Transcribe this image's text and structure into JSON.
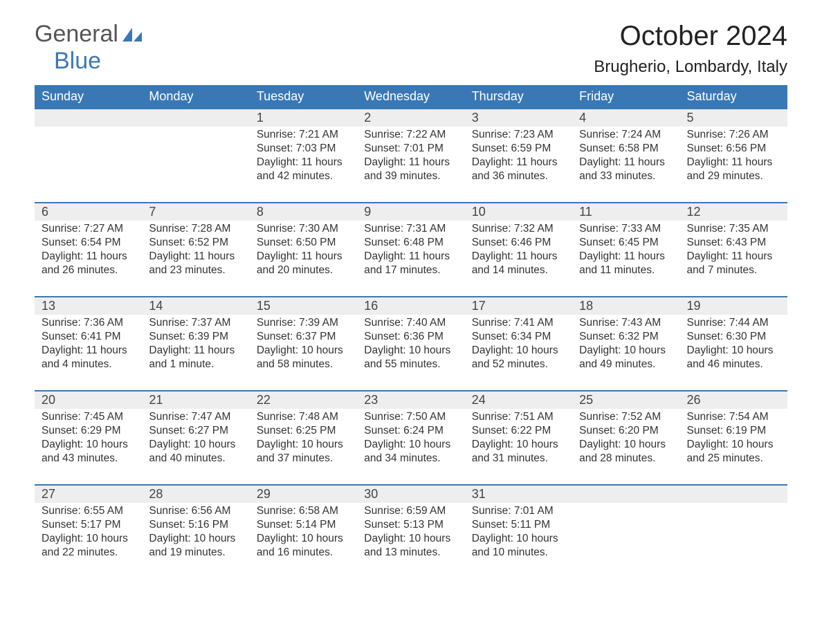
{
  "logo": {
    "general": "General",
    "blue": "Blue"
  },
  "title": "October 2024",
  "location": "Brugherio, Lombardy, Italy",
  "colors": {
    "header_bg": "#3a78b5",
    "header_text": "#ffffff",
    "daynum_bg": "#eeeeee",
    "border_top": "#3a78b5",
    "text": "#333333",
    "logo_gray": "#555555",
    "logo_blue": "#3a78b5",
    "background": "#ffffff"
  },
  "weekdays": [
    "Sunday",
    "Monday",
    "Tuesday",
    "Wednesday",
    "Thursday",
    "Friday",
    "Saturday"
  ],
  "weeks": [
    [
      null,
      null,
      {
        "n": "1",
        "sr": "7:21 AM",
        "ss": "7:03 PM",
        "dl": "11 hours and 42 minutes."
      },
      {
        "n": "2",
        "sr": "7:22 AM",
        "ss": "7:01 PM",
        "dl": "11 hours and 39 minutes."
      },
      {
        "n": "3",
        "sr": "7:23 AM",
        "ss": "6:59 PM",
        "dl": "11 hours and 36 minutes."
      },
      {
        "n": "4",
        "sr": "7:24 AM",
        "ss": "6:58 PM",
        "dl": "11 hours and 33 minutes."
      },
      {
        "n": "5",
        "sr": "7:26 AM",
        "ss": "6:56 PM",
        "dl": "11 hours and 29 minutes."
      }
    ],
    [
      {
        "n": "6",
        "sr": "7:27 AM",
        "ss": "6:54 PM",
        "dl": "11 hours and 26 minutes."
      },
      {
        "n": "7",
        "sr": "7:28 AM",
        "ss": "6:52 PM",
        "dl": "11 hours and 23 minutes."
      },
      {
        "n": "8",
        "sr": "7:30 AM",
        "ss": "6:50 PM",
        "dl": "11 hours and 20 minutes."
      },
      {
        "n": "9",
        "sr": "7:31 AM",
        "ss": "6:48 PM",
        "dl": "11 hours and 17 minutes."
      },
      {
        "n": "10",
        "sr": "7:32 AM",
        "ss": "6:46 PM",
        "dl": "11 hours and 14 minutes."
      },
      {
        "n": "11",
        "sr": "7:33 AM",
        "ss": "6:45 PM",
        "dl": "11 hours and 11 minutes."
      },
      {
        "n": "12",
        "sr": "7:35 AM",
        "ss": "6:43 PM",
        "dl": "11 hours and 7 minutes."
      }
    ],
    [
      {
        "n": "13",
        "sr": "7:36 AM",
        "ss": "6:41 PM",
        "dl": "11 hours and 4 minutes."
      },
      {
        "n": "14",
        "sr": "7:37 AM",
        "ss": "6:39 PM",
        "dl": "11 hours and 1 minute."
      },
      {
        "n": "15",
        "sr": "7:39 AM",
        "ss": "6:37 PM",
        "dl": "10 hours and 58 minutes."
      },
      {
        "n": "16",
        "sr": "7:40 AM",
        "ss": "6:36 PM",
        "dl": "10 hours and 55 minutes."
      },
      {
        "n": "17",
        "sr": "7:41 AM",
        "ss": "6:34 PM",
        "dl": "10 hours and 52 minutes."
      },
      {
        "n": "18",
        "sr": "7:43 AM",
        "ss": "6:32 PM",
        "dl": "10 hours and 49 minutes."
      },
      {
        "n": "19",
        "sr": "7:44 AM",
        "ss": "6:30 PM",
        "dl": "10 hours and 46 minutes."
      }
    ],
    [
      {
        "n": "20",
        "sr": "7:45 AM",
        "ss": "6:29 PM",
        "dl": "10 hours and 43 minutes."
      },
      {
        "n": "21",
        "sr": "7:47 AM",
        "ss": "6:27 PM",
        "dl": "10 hours and 40 minutes."
      },
      {
        "n": "22",
        "sr": "7:48 AM",
        "ss": "6:25 PM",
        "dl": "10 hours and 37 minutes."
      },
      {
        "n": "23",
        "sr": "7:50 AM",
        "ss": "6:24 PM",
        "dl": "10 hours and 34 minutes."
      },
      {
        "n": "24",
        "sr": "7:51 AM",
        "ss": "6:22 PM",
        "dl": "10 hours and 31 minutes."
      },
      {
        "n": "25",
        "sr": "7:52 AM",
        "ss": "6:20 PM",
        "dl": "10 hours and 28 minutes."
      },
      {
        "n": "26",
        "sr": "7:54 AM",
        "ss": "6:19 PM",
        "dl": "10 hours and 25 minutes."
      }
    ],
    [
      {
        "n": "27",
        "sr": "6:55 AM",
        "ss": "5:17 PM",
        "dl": "10 hours and 22 minutes."
      },
      {
        "n": "28",
        "sr": "6:56 AM",
        "ss": "5:16 PM",
        "dl": "10 hours and 19 minutes."
      },
      {
        "n": "29",
        "sr": "6:58 AM",
        "ss": "5:14 PM",
        "dl": "10 hours and 16 minutes."
      },
      {
        "n": "30",
        "sr": "6:59 AM",
        "ss": "5:13 PM",
        "dl": "10 hours and 13 minutes."
      },
      {
        "n": "31",
        "sr": "7:01 AM",
        "ss": "5:11 PM",
        "dl": "10 hours and 10 minutes."
      },
      null,
      null
    ]
  ],
  "labels": {
    "sunrise": "Sunrise: ",
    "sunset": "Sunset: ",
    "daylight": "Daylight: "
  }
}
